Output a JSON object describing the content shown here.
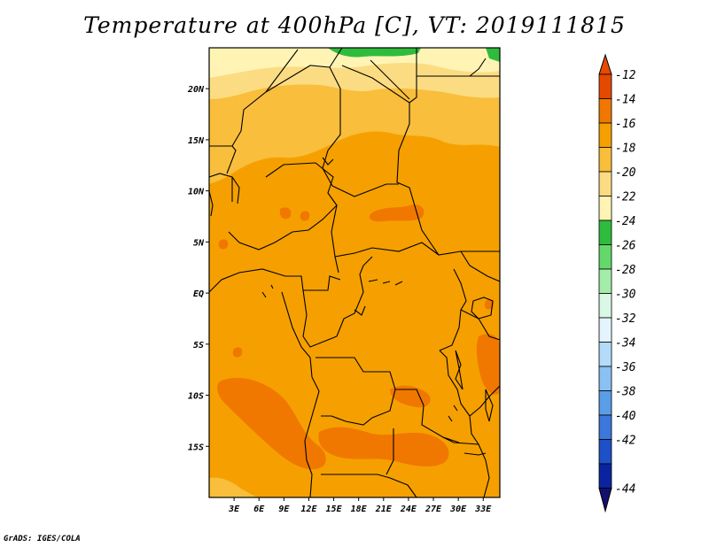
{
  "title": "Temperature at 400hPa [C], VT: 2019111815",
  "credit": "GrADS: IGES/COLA",
  "map": {
    "lon_range": [
      0,
      35
    ],
    "lat_range": [
      -20,
      24
    ],
    "lat_ticks": [
      {
        "value": 20,
        "label": "20N"
      },
      {
        "value": 15,
        "label": "15N"
      },
      {
        "value": 10,
        "label": "10N"
      },
      {
        "value": 5,
        "label": "5N"
      },
      {
        "value": 0,
        "label": "EQ"
      },
      {
        "value": -5,
        "label": "5S"
      },
      {
        "value": -10,
        "label": "10S"
      },
      {
        "value": -15,
        "label": "15S"
      }
    ],
    "lon_ticks": [
      {
        "value": 3,
        "label": "3E"
      },
      {
        "value": 6,
        "label": "6E"
      },
      {
        "value": 9,
        "label": "9E"
      },
      {
        "value": 12,
        "label": "12E"
      },
      {
        "value": 15,
        "label": "15E"
      },
      {
        "value": 18,
        "label": "18E"
      },
      {
        "value": 21,
        "label": "21E"
      },
      {
        "value": 24,
        "label": "24E"
      },
      {
        "value": 27,
        "label": "27E"
      },
      {
        "value": 30,
        "label": "30E"
      },
      {
        "value": 33,
        "label": "33E"
      }
    ]
  },
  "colorbar": {
    "bins": [
      {
        "color": "#e34a00",
        "label": "-12"
      },
      {
        "color": "#f07800",
        "label": "-14"
      },
      {
        "color": "#f5a000",
        "label": "-16"
      },
      {
        "color": "#f8be3c",
        "label": "-18"
      },
      {
        "color": "#fcdc82",
        "label": "-20"
      },
      {
        "color": "#fff4b4",
        "label": "-22"
      },
      {
        "color": "#2fbc3c",
        "label": "-24"
      },
      {
        "color": "#64d86a",
        "label": "-26"
      },
      {
        "color": "#a4ecaa",
        "label": "-28"
      },
      {
        "color": "#daf8e6",
        "label": "-30"
      },
      {
        "color": "#e4f4ff",
        "label": "-32"
      },
      {
        "color": "#b4dcfa",
        "label": "-34"
      },
      {
        "color": "#8ac0f2",
        "label": "-36"
      },
      {
        "color": "#5a9ee8",
        "label": "-38"
      },
      {
        "color": "#3c78dc",
        "label": "-40"
      },
      {
        "color": "#1e50c8",
        "label": "-42"
      },
      {
        "color": "#0a24a0",
        "label": "-44"
      }
    ],
    "top_color": "#e84a00",
    "bottom_color": "#14106e"
  },
  "field_colors": {
    "t14": "#f5a000",
    "t16": "#f8be3c",
    "t18": "#fcdc82",
    "t20": "#fff4b4",
    "t12": "#f07800",
    "t22": "#2fbc3c"
  }
}
